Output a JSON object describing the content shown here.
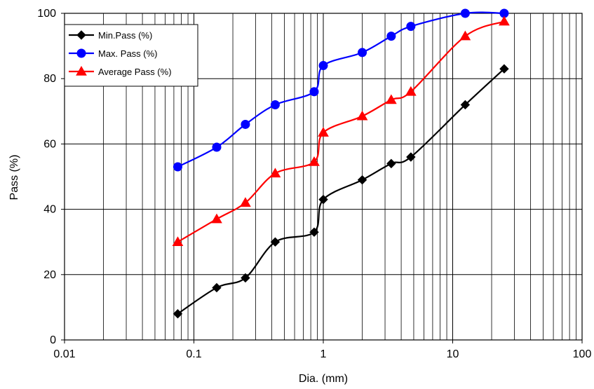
{
  "chart_data": {
    "type": "line",
    "title": "",
    "xlabel": "Dia. (mm)",
    "ylabel": "Pass (%)",
    "x_scale": "log",
    "xlim": [
      0.01,
      100
    ],
    "ylim": [
      0,
      100
    ],
    "x_ticks": [
      0.01,
      0.1,
      1,
      10,
      100
    ],
    "x_tick_labels": [
      "0.01",
      "0.1",
      "1",
      "10",
      "100"
    ],
    "y_ticks": [
      0,
      20,
      40,
      60,
      80,
      100
    ],
    "y_tick_labels": [
      "0",
      "20",
      "40",
      "60",
      "80",
      "100"
    ],
    "grid": {
      "major": true,
      "minor_x": true,
      "color": "#000000"
    },
    "legend": {
      "position": "top-left",
      "border": true
    },
    "x": [
      0.075,
      0.15,
      0.25,
      0.425,
      0.85,
      1.0,
      2.0,
      3.35,
      4.75,
      12.5,
      25
    ],
    "series": [
      {
        "name": "Min.Pass (%)",
        "color": "#000000",
        "marker": "diamond",
        "values": [
          8,
          16,
          19,
          30,
          33,
          43,
          49,
          54,
          56,
          72,
          83
        ]
      },
      {
        "name": "Max. Pass (%)",
        "color": "#0000ff",
        "marker": "circle",
        "values": [
          53,
          59,
          66,
          72,
          76,
          84,
          88,
          93,
          96,
          100,
          100
        ]
      },
      {
        "name": "Average Pass (%)",
        "color": "#ff0000",
        "marker": "triangle",
        "values": [
          30,
          37,
          42,
          51,
          54.5,
          63.5,
          68.5,
          73.5,
          76,
          93,
          97.5
        ]
      }
    ]
  }
}
